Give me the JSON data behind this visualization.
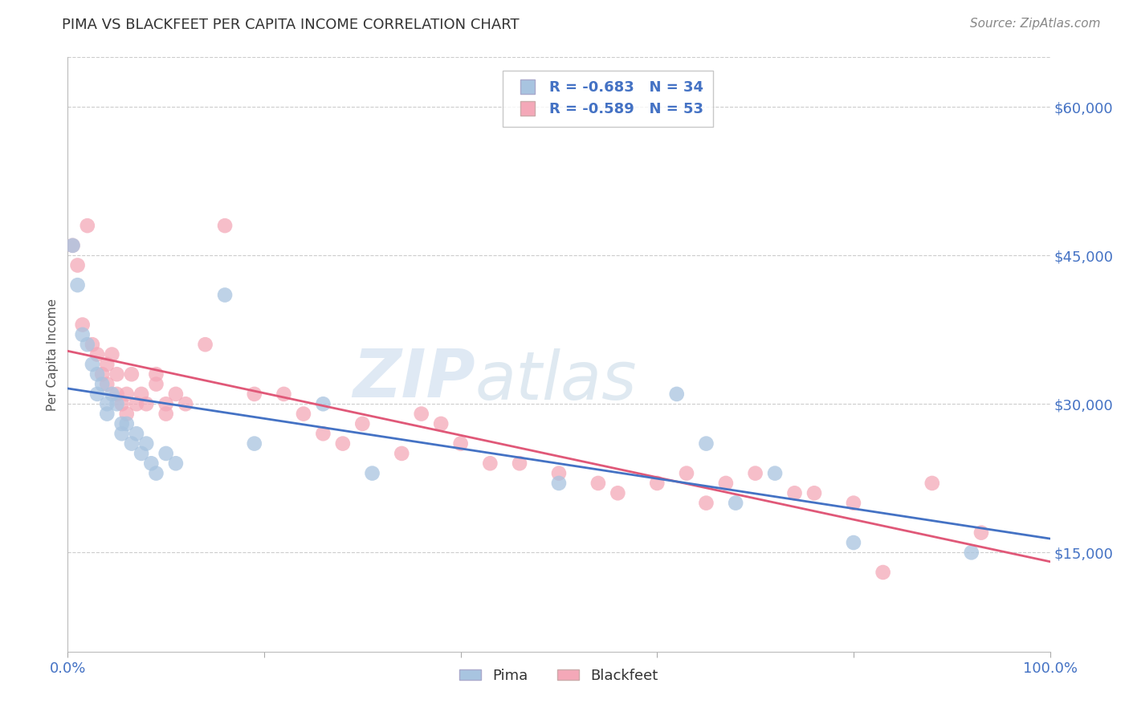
{
  "title": "PIMA VS BLACKFEET PER CAPITA INCOME CORRELATION CHART",
  "source": "Source: ZipAtlas.com",
  "ylabel": "Per Capita Income",
  "xlim": [
    0.0,
    1.0
  ],
  "ylim": [
    5000,
    65000
  ],
  "yticks": [
    15000,
    30000,
    45000,
    60000
  ],
  "ytick_labels": [
    "$15,000",
    "$30,000",
    "$45,000",
    "$60,000"
  ],
  "pima_color": "#a8c4e0",
  "blackfeet_color": "#f4a8b8",
  "pima_line_color": "#4472c4",
  "blackfeet_line_color": "#e05878",
  "axis_text_color": "#4472c4",
  "pima_R": -0.683,
  "pima_N": 34,
  "blackfeet_R": -0.589,
  "blackfeet_N": 53,
  "pima_x": [
    0.005,
    0.01,
    0.015,
    0.02,
    0.025,
    0.03,
    0.03,
    0.035,
    0.04,
    0.04,
    0.045,
    0.05,
    0.055,
    0.055,
    0.06,
    0.065,
    0.07,
    0.075,
    0.08,
    0.085,
    0.09,
    0.1,
    0.11,
    0.16,
    0.19,
    0.26,
    0.31,
    0.5,
    0.62,
    0.65,
    0.68,
    0.72,
    0.8,
    0.92
  ],
  "pima_y": [
    46000,
    42000,
    37000,
    36000,
    34000,
    33000,
    31000,
    32000,
    30000,
    29000,
    31000,
    30000,
    28000,
    27000,
    28000,
    26000,
    27000,
    25000,
    26000,
    24000,
    23000,
    25000,
    24000,
    41000,
    26000,
    30000,
    23000,
    22000,
    31000,
    26000,
    20000,
    23000,
    16000,
    15000
  ],
  "blackfeet_x": [
    0.005,
    0.01,
    0.015,
    0.02,
    0.025,
    0.03,
    0.035,
    0.04,
    0.04,
    0.045,
    0.05,
    0.05,
    0.055,
    0.06,
    0.06,
    0.065,
    0.07,
    0.075,
    0.08,
    0.09,
    0.09,
    0.1,
    0.1,
    0.11,
    0.12,
    0.14,
    0.16,
    0.19,
    0.22,
    0.24,
    0.26,
    0.28,
    0.3,
    0.34,
    0.36,
    0.38,
    0.4,
    0.43,
    0.46,
    0.5,
    0.54,
    0.56,
    0.6,
    0.63,
    0.65,
    0.67,
    0.7,
    0.74,
    0.76,
    0.8,
    0.83,
    0.88,
    0.93
  ],
  "blackfeet_y": [
    46000,
    44000,
    38000,
    48000,
    36000,
    35000,
    33000,
    34000,
    32000,
    35000,
    33000,
    31000,
    30000,
    31000,
    29000,
    33000,
    30000,
    31000,
    30000,
    33000,
    32000,
    30000,
    29000,
    31000,
    30000,
    36000,
    48000,
    31000,
    31000,
    29000,
    27000,
    26000,
    28000,
    25000,
    29000,
    28000,
    26000,
    24000,
    24000,
    23000,
    22000,
    21000,
    22000,
    23000,
    20000,
    22000,
    23000,
    21000,
    21000,
    20000,
    13000,
    22000,
    17000
  ],
  "watermark_zip": "ZIP",
  "watermark_atlas": "atlas",
  "background_color": "#ffffff",
  "grid_color": "#cccccc",
  "title_fontsize": 13,
  "axis_fontsize": 13,
  "ylabel_fontsize": 11
}
